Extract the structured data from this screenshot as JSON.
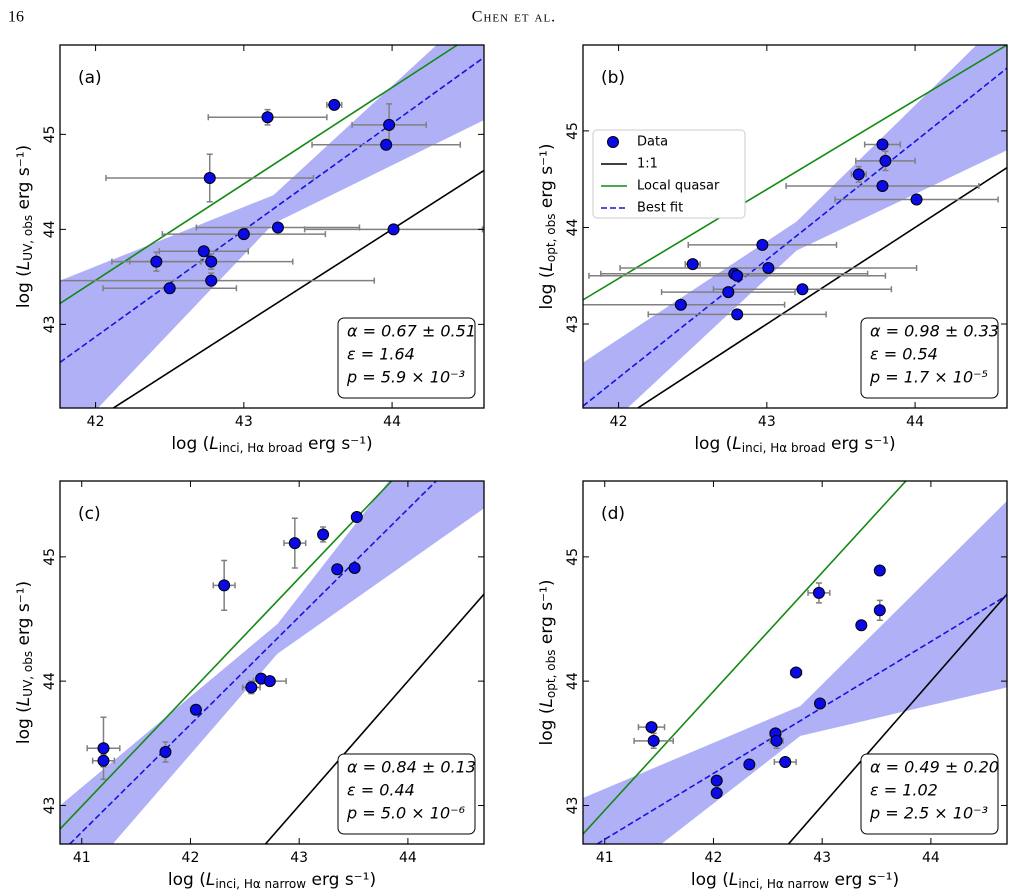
{
  "header": {
    "page": "16",
    "running_title": "Chen et al."
  },
  "chart_data": [
    {
      "type": "scatter",
      "panel_label": "(a)",
      "xlabel": {
        "pre": "log (",
        "sym": "L",
        "sub": "inci, Hα broad",
        "post": " erg s⁻¹)"
      },
      "ylabel": {
        "pre": "log (",
        "sym": "L",
        "sub": "UV, obs",
        "post": " erg s⁻¹)"
      },
      "xlim": [
        41.76,
        44.62
      ],
      "ylim": [
        42.12,
        45.94
      ],
      "xticks": [
        42,
        43,
        44
      ],
      "yticks": [
        43,
        44,
        45
      ],
      "annotation": [
        "α = 0.67 ± 0.51",
        "ε = 1.64",
        "p = 5.9 × 10⁻³"
      ],
      "band": {
        "color": "#b0b0f7",
        "x": [
          41.76,
          43.2,
          44.62
        ],
        "lower": [
          41.7,
          44.06,
          45.15
        ],
        "upper": [
          43.46,
          44.36,
          46.4
        ]
      },
      "series": [
        {
          "marker": "o",
          "color": "#0a0ae6",
          "x": [
            43.61,
            43.16,
            43.98,
            43.96,
            42.77,
            43.23,
            43.0,
            44.01,
            42.73,
            42.41,
            42.78,
            42.78,
            42.5
          ],
          "y": [
            45.31,
            45.18,
            45.1,
            44.89,
            44.54,
            44.02,
            43.95,
            44.0,
            43.77,
            43.66,
            43.66,
            43.46,
            43.38
          ],
          "xerr": [
            0.05,
            0.4,
            0.25,
            0.5,
            0.7,
            0.55,
            0.55,
            0.6,
            0.3,
            0.3,
            0.55,
            1.1,
            0.45
          ],
          "yerr": [
            0.03,
            0.08,
            0.22,
            0.03,
            0.25,
            0,
            0,
            0,
            0,
            0.1,
            0.08,
            0.08,
            0.05
          ]
        },
        {
          "linestyle": "solid",
          "color": "#000000",
          "x": [
            41.76,
            44.62
          ],
          "y": [
            41.76,
            44.62
          ]
        },
        {
          "linestyle": "solid",
          "color": "#138a13",
          "x": [
            41.76,
            44.44
          ],
          "y": [
            43.22,
            45.94
          ]
        },
        {
          "linestyle": "dashed",
          "color": "#1414e0",
          "x": [
            41.76,
            44.62
          ],
          "y": [
            42.6,
            45.81
          ]
        }
      ]
    },
    {
      "type": "scatter",
      "panel_label": "(b)",
      "xlabel": {
        "pre": "log (",
        "sym": "L",
        "sub": "inci, Hα broad",
        "post": " erg s⁻¹)"
      },
      "ylabel": {
        "pre": "log (",
        "sym": "L",
        "sub": "opt, obs",
        "post": " erg s⁻¹)"
      },
      "xlim": [
        41.76,
        44.62
      ],
      "ylim": [
        42.13,
        45.89
      ],
      "xticks": [
        42,
        43,
        44
      ],
      "yticks": [
        43,
        44,
        45
      ],
      "annotation": [
        "α = 0.98 ± 0.33",
        "ε = 0.54",
        "p = 1.7 × 10⁻⁵"
      ],
      "legend": "upper left",
      "band": {
        "color": "#b0b0f7",
        "x": [
          41.76,
          43.2,
          44.62
        ],
        "lower": [
          41.7,
          43.76,
          44.8
        ],
        "upper": [
          42.6,
          44.06,
          46.2
        ]
      },
      "series": [
        {
          "name": "Data",
          "marker": "o",
          "color": "#0a0ae6",
          "x": [
            43.78,
            43.8,
            43.62,
            43.78,
            44.01,
            42.97,
            42.5,
            42.78,
            42.8,
            43.01,
            42.74,
            43.24,
            42.42,
            42.8
          ],
          "y": [
            44.86,
            44.69,
            44.55,
            44.43,
            44.29,
            43.82,
            43.62,
            43.52,
            43.5,
            43.58,
            43.33,
            43.36,
            43.2,
            43.1
          ],
          "xerr": [
            0.12,
            0.2,
            0.05,
            0.65,
            0.55,
            0.5,
            0.05,
            0.9,
            1.0,
            1.0,
            0.45,
            0.6,
            0.7,
            0.6
          ],
          "yerr": [
            0.05,
            0.1,
            0.08,
            0,
            0,
            0,
            0,
            0,
            0,
            0,
            0,
            0,
            0,
            0
          ]
        },
        {
          "name": "1:1",
          "linestyle": "solid",
          "color": "#000000",
          "x": [
            41.76,
            44.62
          ],
          "y": [
            41.76,
            44.62
          ]
        },
        {
          "name": "Local quasar",
          "linestyle": "solid",
          "color": "#138a13",
          "x": [
            41.76,
            44.62
          ],
          "y": [
            43.25,
            45.89
          ]
        },
        {
          "name": "Best fit",
          "linestyle": "dashed",
          "color": "#1414e0",
          "x": [
            41.76,
            44.62
          ],
          "y": [
            42.15,
            45.65
          ]
        }
      ]
    },
    {
      "type": "scatter",
      "panel_label": "(c)",
      "xlabel": {
        "pre": "log (",
        "sym": "L",
        "sub": "inci, Hα narrow",
        "post": " erg s⁻¹)"
      },
      "ylabel": {
        "pre": "log (",
        "sym": "L",
        "sub": "UV, obs",
        "post": " erg s⁻¹)"
      },
      "xlim": [
        40.8,
        44.7
      ],
      "ylim": [
        42.69,
        45.61
      ],
      "xticks": [
        41,
        42,
        43,
        44
      ],
      "yticks": [
        43,
        44,
        45
      ],
      "annotation": [
        "α = 0.84 ± 0.13",
        "ε = 0.44",
        "p = 5.0 × 10⁻⁶"
      ],
      "band": {
        "color": "#b0b0f7",
        "x": [
          40.8,
          42.8,
          44.7
        ],
        "lower": [
          42.2,
          44.22,
          45.39
        ],
        "upper": [
          43.0,
          44.46,
          46.59
        ]
      },
      "series": [
        {
          "marker": "o",
          "color": "#0a0ae6",
          "x": [
            43.53,
            43.22,
            42.96,
            43.35,
            43.51,
            42.31,
            42.65,
            42.73,
            42.56,
            42.05,
            41.77,
            41.2,
            41.2
          ],
          "y": [
            45.32,
            45.18,
            45.11,
            44.9,
            44.91,
            44.77,
            44.02,
            44.0,
            43.95,
            43.77,
            43.43,
            43.46,
            43.36
          ],
          "xerr": [
            0,
            0,
            0.1,
            0,
            0,
            0.1,
            0,
            0.15,
            0.08,
            0,
            0,
            0.15,
            0.1
          ],
          "yerr": [
            0,
            0.06,
            0.2,
            0,
            0,
            0.2,
            0.03,
            0,
            0.05,
            0,
            0.08,
            0.25,
            0.05
          ]
        },
        {
          "linestyle": "solid",
          "color": "#000000",
          "x": [
            42.69,
            44.7
          ],
          "y": [
            42.69,
            44.7
          ]
        },
        {
          "linestyle": "solid",
          "color": "#138a13",
          "x": [
            40.8,
            43.85
          ],
          "y": [
            42.81,
            45.61
          ]
        },
        {
          "linestyle": "dashed",
          "color": "#1414e0",
          "x": [
            40.89,
            44.26
          ],
          "y": [
            42.69,
            45.61
          ]
        }
      ]
    },
    {
      "type": "scatter",
      "panel_label": "(d)",
      "xlabel": {
        "pre": "log (",
        "sym": "L",
        "sub": "inci, Hα narrow",
        "post": " erg s⁻¹)"
      },
      "ylabel": {
        "pre": "log (",
        "sym": "L",
        "sub": "opt, obs",
        "post": " erg s⁻¹)"
      },
      "xlim": [
        40.8,
        44.7
      ],
      "ylim": [
        42.69,
        45.61
      ],
      "xticks": [
        41,
        42,
        43,
        44
      ],
      "yticks": [
        43,
        44,
        45
      ],
      "annotation": [
        "α = 0.49 ± 0.20",
        "ε = 1.02",
        "p = 2.5 × 10⁻³"
      ],
      "band": {
        "color": "#b0b0f7",
        "x": [
          40.8,
          42.8,
          44.7
        ],
        "lower": [
          42.2,
          43.56,
          43.95
        ],
        "upper": [
          43.06,
          43.8,
          45.45
        ]
      },
      "series": [
        {
          "marker": "o",
          "color": "#0a0ae6",
          "x": [
            43.53,
            43.53,
            42.97,
            43.36,
            42.76,
            42.98,
            41.43,
            41.45,
            42.57,
            42.58,
            42.33,
            42.66,
            42.03,
            42.03
          ],
          "y": [
            44.89,
            44.57,
            44.71,
            44.45,
            44.07,
            43.82,
            43.63,
            43.52,
            43.58,
            43.52,
            43.33,
            43.35,
            43.2,
            43.1
          ],
          "xerr": [
            0,
            0,
            0.1,
            0,
            0.05,
            0,
            0.12,
            0.18,
            0.05,
            0.06,
            0,
            0.1,
            0,
            0
          ],
          "yerr": [
            0,
            0.08,
            0.08,
            0,
            0,
            0,
            0,
            0.06,
            0,
            0.06,
            0,
            0.03,
            0,
            0
          ]
        },
        {
          "linestyle": "solid",
          "color": "#000000",
          "x": [
            42.69,
            44.7
          ],
          "y": [
            42.69,
            44.7
          ]
        },
        {
          "linestyle": "solid",
          "color": "#138a13",
          "x": [
            40.8,
            43.77
          ],
          "y": [
            42.77,
            45.61
          ]
        },
        {
          "linestyle": "dashed",
          "color": "#1414e0",
          "x": [
            40.93,
            44.7
          ],
          "y": [
            42.69,
            44.69
          ]
        }
      ]
    }
  ]
}
